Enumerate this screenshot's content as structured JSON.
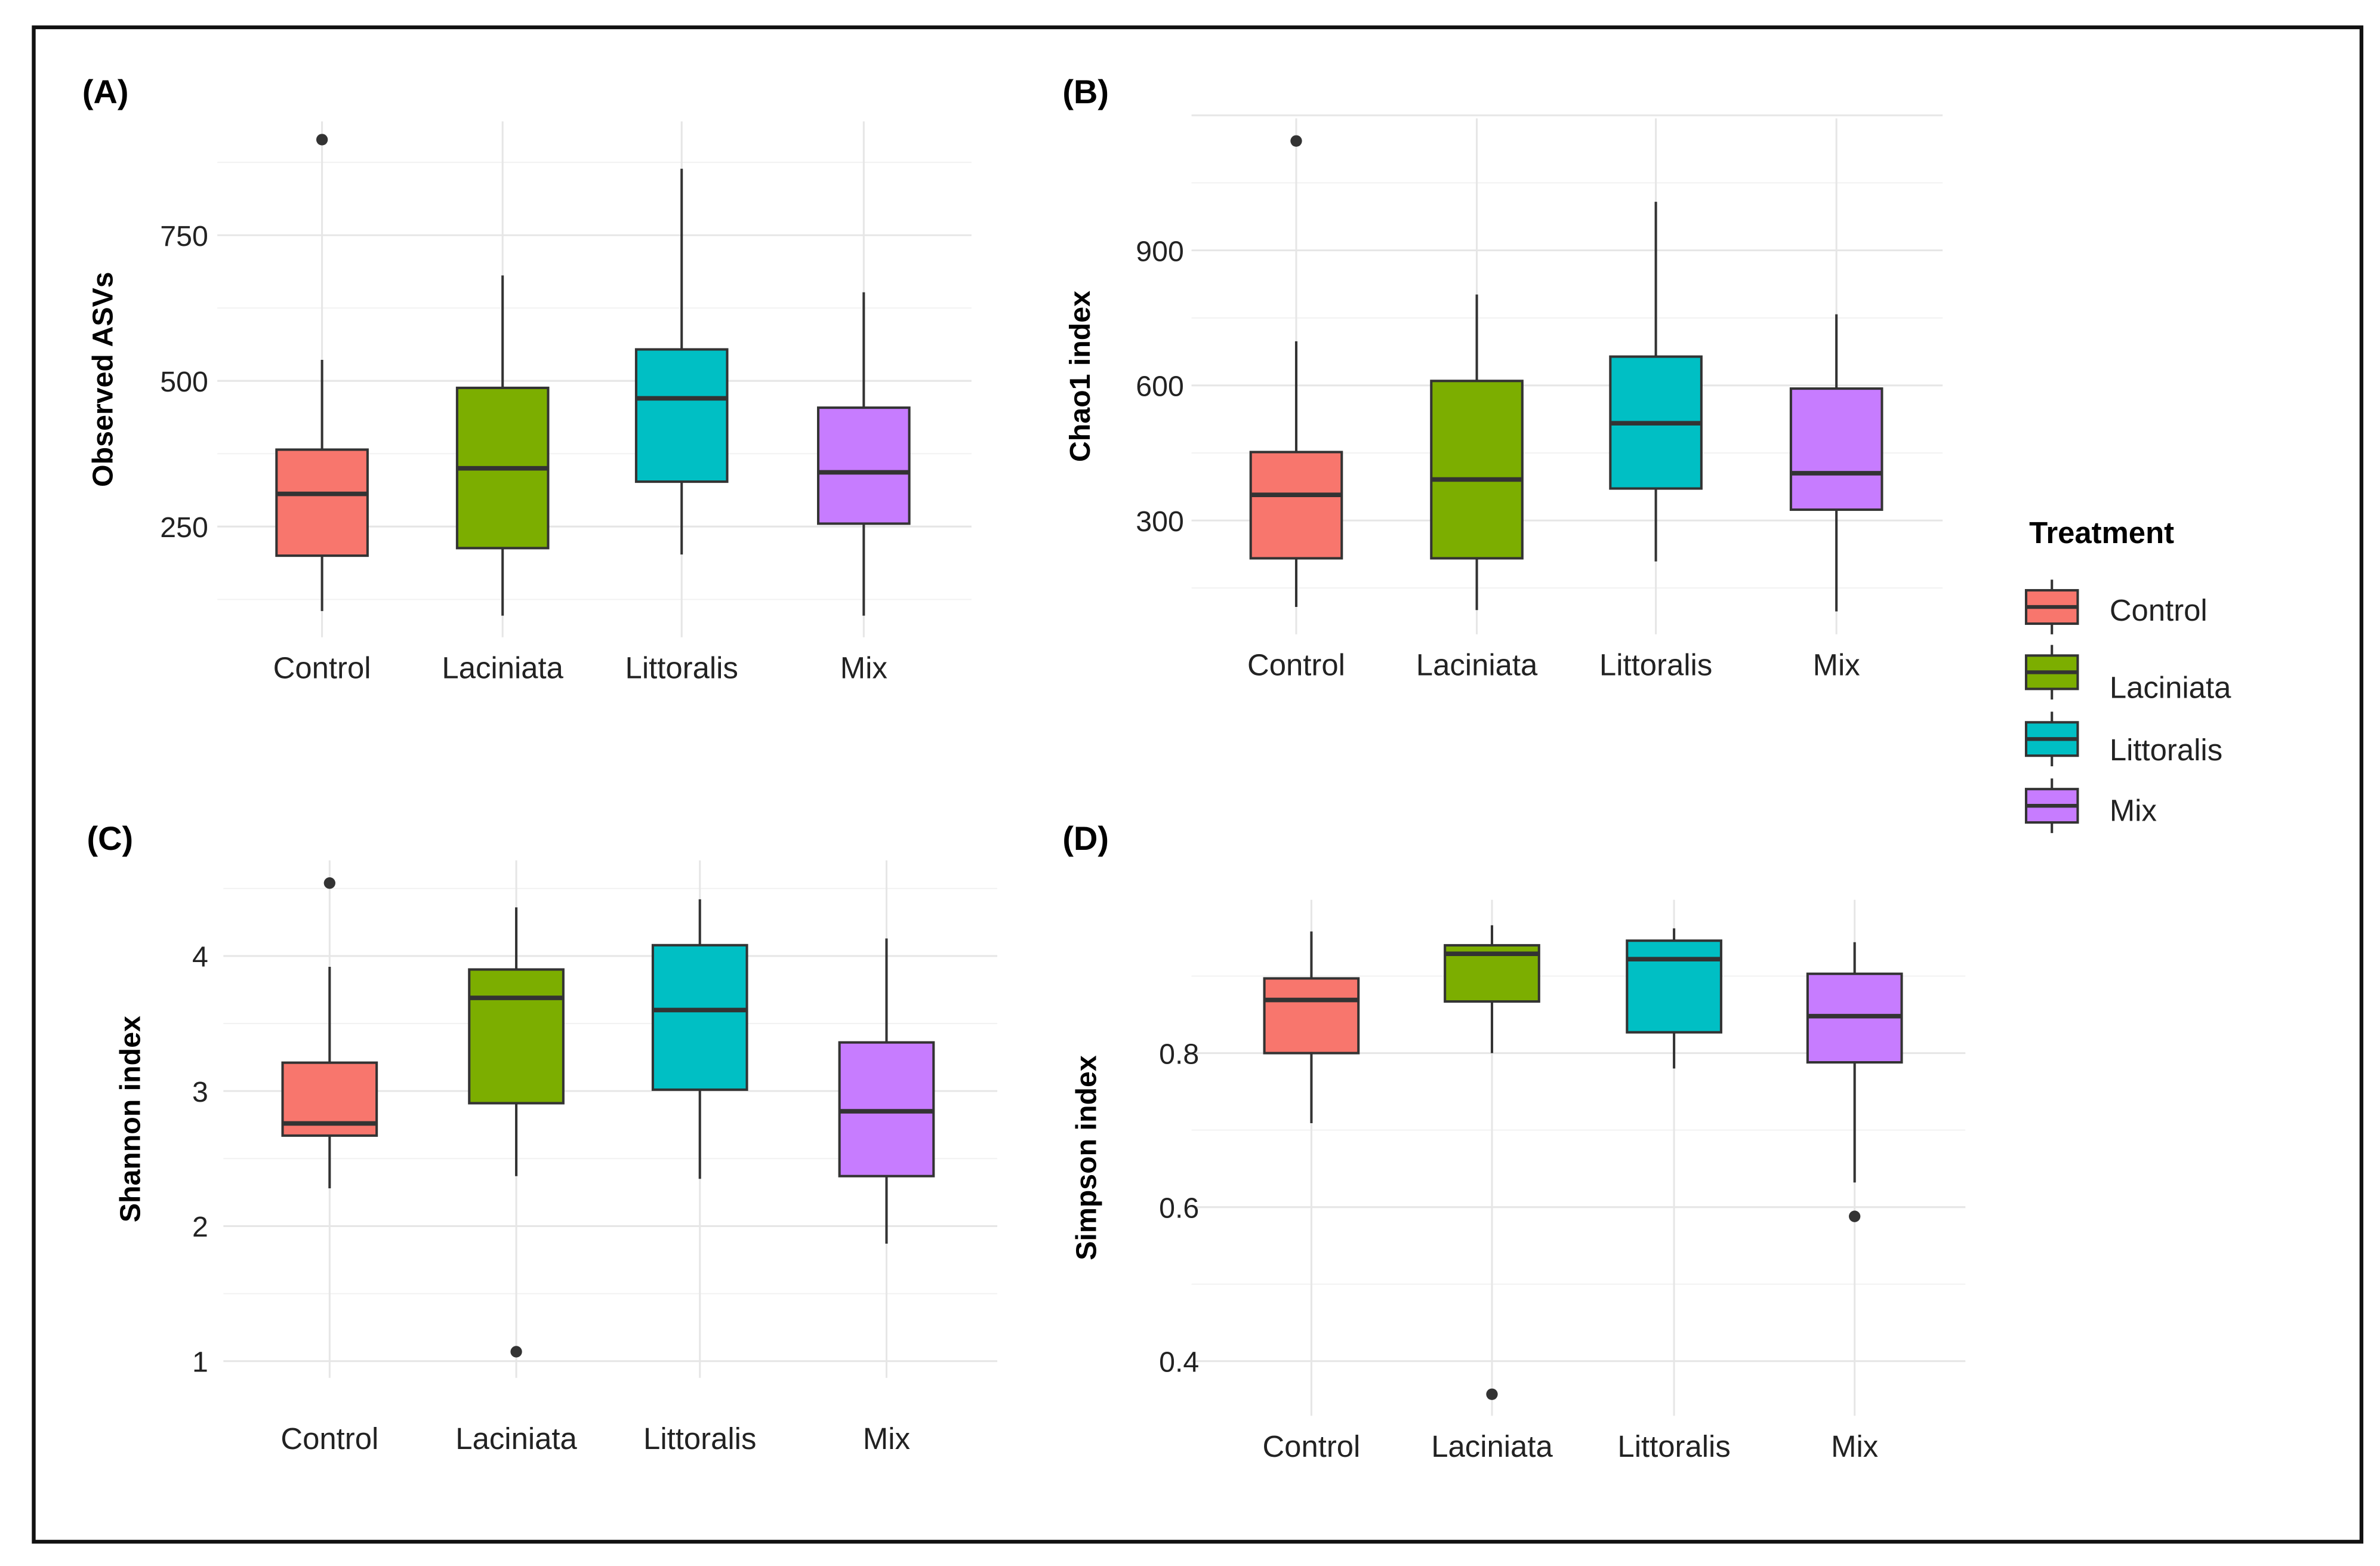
{
  "chart_data": [
    {
      "type": "box",
      "title": "(A)",
      "xlabel": "",
      "ylabel": "Observed ASVs",
      "categories": [
        "Control",
        "Laciniata",
        "Littoralis",
        "Mix"
      ],
      "yticks": [
        250,
        500,
        750
      ],
      "ylim": [
        70,
        980
      ],
      "grid": true,
      "series": [
        {
          "name": "Control",
          "whisker_low": 105,
          "q1": 200,
          "median": 306,
          "q3": 382,
          "whisker_high": 536,
          "outliers": [
            914
          ]
        },
        {
          "name": "Laciniata",
          "whisker_low": 97,
          "q1": 213,
          "median": 350,
          "q3": 488,
          "whisker_high": 681,
          "outliers": []
        },
        {
          "name": "Littoralis",
          "whisker_low": 202,
          "q1": 327,
          "median": 470,
          "q3": 554,
          "whisker_high": 864,
          "outliers": []
        },
        {
          "name": "Mix",
          "whisker_low": 97,
          "q1": 255,
          "median": 343,
          "q3": 454,
          "whisker_high": 652,
          "outliers": []
        }
      ]
    },
    {
      "type": "box",
      "title": "(B)",
      "xlabel": "",
      "ylabel": "Chao1 index",
      "categories": [
        "Control",
        "Laciniata",
        "Littoralis",
        "Mix"
      ],
      "yticks": [
        300,
        600,
        900
      ],
      "ylim": [
        60,
        1200
      ],
      "grid": true,
      "series": [
        {
          "name": "Control",
          "whisker_low": 108,
          "q1": 216,
          "median": 357,
          "q3": 452,
          "whisker_high": 698,
          "outliers": [
            1143
          ]
        },
        {
          "name": "Laciniata",
          "whisker_low": 101,
          "q1": 216,
          "median": 391,
          "q3": 610,
          "whisker_high": 802,
          "outliers": []
        },
        {
          "name": "Littoralis",
          "whisker_low": 209,
          "q1": 371,
          "median": 516,
          "q3": 664,
          "whisker_high": 1008,
          "outliers": []
        },
        {
          "name": "Mix",
          "whisker_low": 98,
          "q1": 324,
          "median": 405,
          "q3": 593,
          "whisker_high": 758,
          "outliers": []
        }
      ]
    },
    {
      "type": "box",
      "title": "(C)",
      "xlabel": "",
      "ylabel": "Shannon index",
      "categories": [
        "Control",
        "Laciniata",
        "Littoralis",
        "Mix"
      ],
      "yticks": [
        1,
        2,
        3,
        4
      ],
      "ylim": [
        0.88,
        4.7
      ],
      "grid": true,
      "series": [
        {
          "name": "Control",
          "whisker_low": 2.28,
          "q1": 2.67,
          "median": 2.76,
          "q3": 3.21,
          "whisker_high": 3.92,
          "outliers": [
            4.54
          ]
        },
        {
          "name": "Laciniata",
          "whisker_low": 2.37,
          "q1": 2.91,
          "median": 3.69,
          "q3": 3.9,
          "whisker_high": 4.36,
          "outliers": [
            1.07
          ]
        },
        {
          "name": "Littoralis",
          "whisker_low": 2.35,
          "q1": 3.01,
          "median": 3.6,
          "q3": 4.08,
          "whisker_high": 4.42,
          "outliers": []
        },
        {
          "name": "Mix",
          "whisker_low": 1.87,
          "q1": 2.37,
          "median": 2.85,
          "q3": 3.36,
          "whisker_high": 4.13,
          "outliers": []
        }
      ]
    },
    {
      "type": "box",
      "title": "(D)",
      "xlabel": "",
      "ylabel": "Simpson index",
      "categories": [
        "Control",
        "Laciniata",
        "Littoralis",
        "Mix"
      ],
      "yticks": [
        0.4,
        0.6,
        0.8
      ],
      "ylim": [
        0.33,
        0.99
      ],
      "grid": true,
      "series": [
        {
          "name": "Control",
          "whisker_low": 0.709,
          "q1": 0.8,
          "median": 0.869,
          "q3": 0.897,
          "whisker_high": 0.958,
          "outliers": []
        },
        {
          "name": "Laciniata",
          "whisker_low": 0.8,
          "q1": 0.867,
          "median": 0.929,
          "q3": 0.94,
          "whisker_high": 0.966,
          "outliers": [
            0.357
          ]
        },
        {
          "name": "Littoralis",
          "whisker_low": 0.78,
          "q1": 0.827,
          "median": 0.922,
          "q3": 0.946,
          "whisker_high": 0.962,
          "outliers": []
        },
        {
          "name": "Mix",
          "whisker_low": 0.632,
          "q1": 0.788,
          "median": 0.848,
          "q3": 0.903,
          "whisker_high": 0.944,
          "outliers": [
            0.588
          ]
        }
      ]
    }
  ],
  "legend": {
    "title": "Treatment",
    "placement": "right",
    "items": [
      {
        "label": "Control",
        "color": "#F8766D"
      },
      {
        "label": "Laciniata",
        "color": "#7CAE00"
      },
      {
        "label": "Littoralis",
        "color": "#00BFC4"
      },
      {
        "label": "Mix",
        "color": "#C77CFF"
      }
    ]
  }
}
